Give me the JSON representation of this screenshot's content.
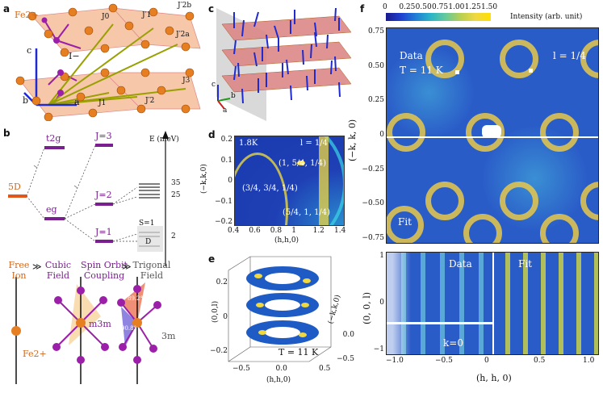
{
  "panels": {
    "a": "a",
    "b": "b",
    "c": "c",
    "d": "d",
    "e": "e",
    "f": "f"
  },
  "panel_a": {
    "ion": "Fe2+",
    "iodide": "I−",
    "J0": "J0",
    "J1": "J1",
    "J2a": "J′2a",
    "J2b": "J′2b",
    "J3": "J3",
    "J1p": "J′1",
    "J2p": "J′2",
    "axis_a": "a",
    "axis_b": "b",
    "axis_c": "c"
  },
  "panel_b": {
    "term": "5D",
    "t2g": "t2g",
    "eg": "eg",
    "J3": "J=3",
    "J2": "J=2",
    "J1": "J=1",
    "energy_axis": "E (meV)",
    "e35": "35",
    "e25": "25",
    "e2": "2",
    "S1": "S=1",
    "D": "D",
    "free_ion": "Free Ion",
    "cubic": "Cubic Field",
    "soc": "Spin Orbit Coupling",
    "trigonal": "Trigonal Field",
    "gg1": "≫",
    "gg2": "≫",
    "sym1": "m3m",
    "sym2": "3m",
    "fe_label": "Fe2+",
    "angle1": "89.2°",
    "angle2": "90.8°"
  },
  "panel_c": {
    "axis_c": "c",
    "axis_b": "b",
    "axis_a": "a"
  },
  "panel_d": {
    "temp": "1.8K",
    "l": "l = 1/4",
    "p1": "(1, 5/4, 1/4)",
    "p2": "(3/4, 3/4, 1/4)",
    "p3": "(5/4, 1, 1/4)",
    "xlabel": "(h,h,0)",
    "ylabel": "(−k,k,0)",
    "xticks": [
      "0.4",
      "0.6",
      "0.8",
      "1",
      "1.2",
      "1.4"
    ],
    "yticks": [
      "0.2",
      "0.1",
      "0",
      "−0.1",
      "−0.2"
    ]
  },
  "panel_e": {
    "temp": "T = 11 K",
    "xlabel": "(h,h,0)",
    "ylabel": "(−k,k,0)",
    "zlabel": "(0,0,l)",
    "xticks": [
      "−0.5",
      "0.0",
      "0.5"
    ],
    "yticks": [
      "0.0",
      "−0.5"
    ],
    "zticks": [
      "0.2",
      "0",
      "−0.2"
    ]
  },
  "panel_f": {
    "cbar_title": "Intensity (arb. unit)",
    "cbar_ticks": [
      "0",
      "0.25",
      "0.50",
      "0.75",
      "1.00",
      "1.25",
      "1.50"
    ],
    "top_data": "Data",
    "top_temp": "T = 11 K",
    "top_l": "l = 1/4",
    "top_fit": "Fit",
    "top_ylabel": "(−k, k, 0)",
    "top_yticks": [
      "0.75",
      "0.50",
      "0.25",
      "0",
      "−0.25",
      "−0.50",
      "−0.75"
    ],
    "bot_data": "Data",
    "bot_fit": "Fit",
    "bot_k": "k=0",
    "bot_ylabel": "(0, 0, l)",
    "bot_yticks": [
      "1",
      "0",
      "−1"
    ],
    "xlabel": "(h, h, 0)",
    "xticks": [
      "−1.0",
      "−0.5",
      "0",
      "0.5",
      "1.0"
    ]
  },
  "colors": {
    "fe": "#e67e22",
    "iodide": "#9b1fa8",
    "plane": "#f6c7a8",
    "arrow": "#1f2bd1",
    "jarrow": "#9aa000"
  }
}
